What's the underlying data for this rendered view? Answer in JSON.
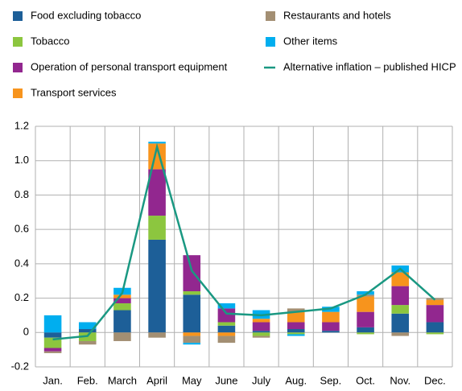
{
  "chart_data": {
    "type": "bar",
    "categories": [
      "Jan.",
      "Feb.",
      "March",
      "April",
      "May",
      "June",
      "July",
      "Aug.",
      "Sep.",
      "Oct.",
      "Nov.",
      "Dec."
    ],
    "series": [
      {
        "name": "Food excluding tobacco",
        "type": "bar",
        "color": "#1d5f98",
        "values": [
          -0.03,
          0.02,
          0.13,
          0.54,
          0.22,
          0.04,
          0.01,
          0.02,
          0.01,
          0.03,
          0.11,
          0.06
        ]
      },
      {
        "name": "Tobacco",
        "type": "bar",
        "color": "#8cc63f",
        "values": [
          -0.06,
          -0.05,
          0.04,
          0.14,
          0.02,
          0.02,
          -0.02,
          -0.01,
          0,
          -0.01,
          0.05,
          -0.01
        ]
      },
      {
        "name": "Operation of personal transport equipment",
        "type": "bar",
        "color": "#92278f",
        "values": [
          -0.02,
          0,
          0.03,
          0.27,
          0.21,
          0.08,
          0.05,
          0.04,
          0.05,
          0.09,
          0.11,
          0.1
        ]
      },
      {
        "name": "Transport services",
        "type": "bar",
        "color": "#f7941d",
        "values": [
          0,
          0,
          0.02,
          0.15,
          -0.02,
          -0.02,
          0.02,
          0.06,
          0.06,
          0.09,
          0.08,
          0.03
        ]
      },
      {
        "name": "Restaurants and hotels",
        "type": "bar",
        "color": "#a38f73",
        "values": [
          -0.01,
          -0.02,
          -0.05,
          -0.03,
          -0.04,
          -0.04,
          -0.01,
          0.02,
          0,
          0.01,
          -0.02,
          0.01
        ]
      },
      {
        "name": "Other items",
        "type": "bar",
        "color": "#00aeef",
        "values": [
          0.1,
          0.04,
          0.04,
          0.01,
          -0.01,
          0.03,
          0.05,
          -0.01,
          0.03,
          0.02,
          0.04,
          0
        ]
      },
      {
        "name": "Alternative inflation – published HICP",
        "type": "line",
        "color": "#1a9882",
        "values": [
          -0.04,
          -0.02,
          0.23,
          1.08,
          0.36,
          0.11,
          0.1,
          0.12,
          0.14,
          0.22,
          0.37,
          0.19
        ]
      }
    ],
    "ylim": [
      -0.2,
      1.2
    ],
    "yticks": [
      -0.2,
      0,
      0.2,
      0.4,
      0.6,
      0.8,
      {
        "value": 1,
        "label": "1.0"
      },
      1.2
    ],
    "grid": true
  }
}
